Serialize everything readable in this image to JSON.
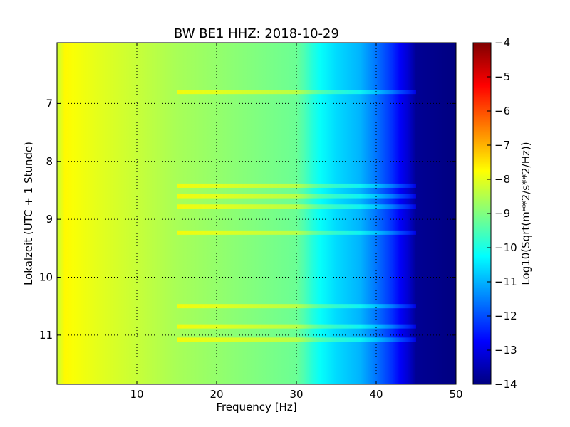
{
  "chart_data": {
    "type": "heatmap",
    "title": "BW BE1 HHZ: 2018-10-29",
    "xlabel": "Frequency [Hz]",
    "ylabel": "Lokalzeit (UTC + 1 Stunde)",
    "xlim": [
      0,
      50
    ],
    "ylim": [
      5.95,
      11.85
    ],
    "y_inverted": true,
    "xticks": [
      10,
      20,
      30,
      40,
      50
    ],
    "yticks": [
      7,
      8,
      9,
      10,
      11
    ],
    "grid": true,
    "colormap": "jet",
    "colorbar": {
      "label": "Log10(Sqrt(m**2/s**2/Hz))",
      "range": [
        -14,
        -4
      ],
      "ticks": [
        -4,
        -5,
        -6,
        -7,
        -8,
        -9,
        -10,
        -11,
        -12,
        -13,
        -14
      ]
    },
    "level_profile": {
      "frequency_hz": [
        0,
        1,
        2,
        5,
        10,
        15,
        20,
        25,
        30,
        31,
        32,
        33,
        35,
        38,
        40,
        42,
        43,
        44,
        45,
        50
      ],
      "value": [
        -8.3,
        -7.7,
        -7.8,
        -8.0,
        -8.3,
        -8.6,
        -8.8,
        -9.0,
        -9.2,
        -9.5,
        -9.9,
        -10.2,
        -10.6,
        -11.0,
        -11.6,
        -12.3,
        -12.8,
        -13.2,
        -13.8,
        -14.0
      ]
    },
    "loud_bands_hour": [
      6.8,
      8.42,
      8.6,
      8.78,
      9.23,
      10.5,
      10.85,
      11.08
    ]
  }
}
